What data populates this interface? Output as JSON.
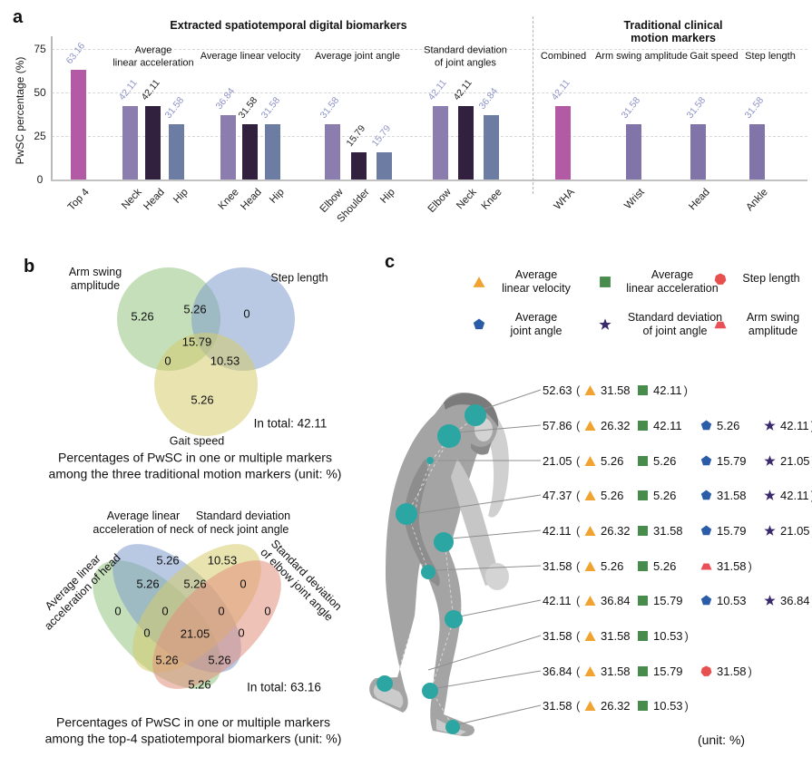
{
  "panel_labels": {
    "a": "a",
    "b": "b",
    "c": "c"
  },
  "colors": {
    "magenta": "#b25aa4",
    "purple": "#8b7dad",
    "dark": "#32203f",
    "slate": "#6d7ca3",
    "trad_purple": "#8174a8",
    "label_light": "#8e93c7",
    "label_dark": "#222222",
    "teal_marker": "#2ba6a3",
    "venn_green": "#93c57f",
    "venn_blue": "#7f9dcc",
    "venn_yellow": "#d6cc6d",
    "venn_red": "#e2907e"
  },
  "chart_data": {
    "type": "bar",
    "ylabel": "PwSC percentage (%)",
    "yticks": [
      0,
      25,
      50,
      75
    ],
    "ylim": [
      0,
      80
    ],
    "grid": true,
    "section_titles": [
      "Extracted spatiotemporal digital biomarkers",
      "Traditional clinical motion markers"
    ],
    "groups": [
      {
        "header": "",
        "bars": [
          {
            "label": "Top 4",
            "value": 63.16,
            "color": "magenta"
          }
        ]
      },
      {
        "header": "Average\nlinear acceleration",
        "bars": [
          {
            "label": "Neck",
            "value": 42.11,
            "color": "purple"
          },
          {
            "label": "Head",
            "value": 42.11,
            "color": "dark"
          },
          {
            "label": "Hip",
            "value": 31.58,
            "color": "slate"
          }
        ]
      },
      {
        "header": "Average linear velocity",
        "bars": [
          {
            "label": "Knee",
            "value": 36.84,
            "color": "purple"
          },
          {
            "label": "Head",
            "value": 31.58,
            "color": "dark"
          },
          {
            "label": "Hip",
            "value": 31.58,
            "color": "slate"
          }
        ]
      },
      {
        "header": "Average joint angle",
        "bars": [
          {
            "label": "Elbow",
            "value": 31.58,
            "color": "purple"
          },
          {
            "label": "Shoulder",
            "value": 15.79,
            "color": "dark"
          },
          {
            "label": "Hip",
            "value": 15.79,
            "color": "slate"
          }
        ]
      },
      {
        "header": "Standard deviation\nof joint angles",
        "bars": [
          {
            "label": "Elbow",
            "value": 42.11,
            "color": "purple"
          },
          {
            "label": "Neck",
            "value": 42.11,
            "color": "dark"
          },
          {
            "label": "Knee",
            "value": 36.84,
            "color": "slate"
          }
        ]
      },
      {
        "header": "Combined",
        "bars": [
          {
            "label": "WHA",
            "value": 42.11,
            "color": "magenta"
          }
        ]
      },
      {
        "header": "Arm swing amplitude",
        "bars": [
          {
            "label": "Wrist",
            "value": 31.58,
            "color": "trad_purple"
          }
        ]
      },
      {
        "header": "Gait speed",
        "bars": [
          {
            "label": "Head",
            "value": 31.58,
            "color": "trad_purple"
          }
        ]
      },
      {
        "header": "Step length",
        "bars": [
          {
            "label": "Ankle",
            "value": 31.58,
            "color": "trad_purple"
          }
        ]
      }
    ]
  },
  "venn3": {
    "set_labels": [
      "Arm swing\namplitude",
      "Step length",
      "Gait speed"
    ],
    "regions": [
      "5.26",
      "5.26",
      "0",
      "15.79",
      "0",
      "10.53",
      "5.26"
    ],
    "total": "In total: 42.11",
    "caption": "Percentages of PwSC in one or multiple markers\namong the three traditional motion markers (unit: %)"
  },
  "venn4": {
    "set_labels": [
      "Average linear\nacceleration of head",
      "Average linear\nacceleration of neck",
      "Standard deviation\nof neck joint angle",
      "Standard deviation\nof elbow joint angle"
    ],
    "regions": [
      "5.26",
      "10.53",
      "5.26",
      "5.26",
      "0",
      "0",
      "0",
      "0",
      "0",
      "0",
      "21.05",
      "0",
      "5.26",
      "5.26",
      "5.26"
    ],
    "total": "In total: 63.16",
    "caption": "Percentages of PwSC in one or multiple markers\namong the top-4 spatiotemporal biomarkers (unit: %)"
  },
  "panel_c": {
    "legend": [
      {
        "icon": "triangle",
        "color": "#f0a330",
        "label": "Average\nlinear velocity"
      },
      {
        "icon": "square",
        "color": "#478c4d",
        "label": "Average\nlinear acceleration"
      },
      {
        "icon": "hexagon",
        "color": "#e8504f",
        "label": "Step length"
      },
      {
        "icon": "pentagon",
        "color": "#2a5ca8",
        "label": "Average\njoint angle"
      },
      {
        "icon": "star",
        "color": "#3a2a6d",
        "label": "Standard deviation\nof joint angle"
      },
      {
        "icon": "trapezoid",
        "color": "#ea5058",
        "label": "Arm swing\namplitude"
      }
    ],
    "rows": [
      {
        "total": "52.63",
        "items": [
          {
            "icon": "triangle",
            "value": "31.58"
          },
          {
            "icon": "square",
            "value": "42.11"
          }
        ]
      },
      {
        "total": "57.86",
        "items": [
          {
            "icon": "triangle",
            "value": "26.32"
          },
          {
            "icon": "square",
            "value": "42.11"
          },
          {
            "icon": "pentagon",
            "value": "5.26"
          },
          {
            "icon": "star",
            "value": "42.11"
          }
        ]
      },
      {
        "total": "21.05",
        "items": [
          {
            "icon": "triangle",
            "value": "5.26"
          },
          {
            "icon": "square",
            "value": "5.26"
          },
          {
            "icon": "pentagon",
            "value": "15.79"
          },
          {
            "icon": "star",
            "value": "21.05"
          }
        ]
      },
      {
        "total": "47.37",
        "items": [
          {
            "icon": "triangle",
            "value": "5.26"
          },
          {
            "icon": "square",
            "value": "5.26"
          },
          {
            "icon": "pentagon",
            "value": "31.58"
          },
          {
            "icon": "star",
            "value": "42.11"
          }
        ]
      },
      {
        "total": "42.11",
        "items": [
          {
            "icon": "triangle",
            "value": "26.32"
          },
          {
            "icon": "square",
            "value": "31.58"
          },
          {
            "icon": "pentagon",
            "value": "15.79"
          },
          {
            "icon": "star",
            "value": "21.05"
          }
        ]
      },
      {
        "total": "31.58",
        "items": [
          {
            "icon": "triangle",
            "value": "5.26"
          },
          {
            "icon": "square",
            "value": "5.26"
          },
          {
            "icon": "trapezoid",
            "value": "31.58"
          }
        ]
      },
      {
        "total": "42.11",
        "items": [
          {
            "icon": "triangle",
            "value": "36.84"
          },
          {
            "icon": "square",
            "value": "15.79"
          },
          {
            "icon": "pentagon",
            "value": "10.53"
          },
          {
            "icon": "star",
            "value": "36.84"
          }
        ]
      },
      {
        "total": "31.58",
        "items": [
          {
            "icon": "triangle",
            "value": "31.58"
          },
          {
            "icon": "square",
            "value": "10.53"
          }
        ]
      },
      {
        "total": "36.84",
        "items": [
          {
            "icon": "triangle",
            "value": "31.58"
          },
          {
            "icon": "square",
            "value": "15.79"
          },
          {
            "icon": "hexagon",
            "value": "31.58"
          }
        ]
      },
      {
        "total": "31.58",
        "items": [
          {
            "icon": "triangle",
            "value": "26.32"
          },
          {
            "icon": "square",
            "value": "10.53"
          }
        ]
      }
    ],
    "unit_note": "(unit: %)"
  }
}
